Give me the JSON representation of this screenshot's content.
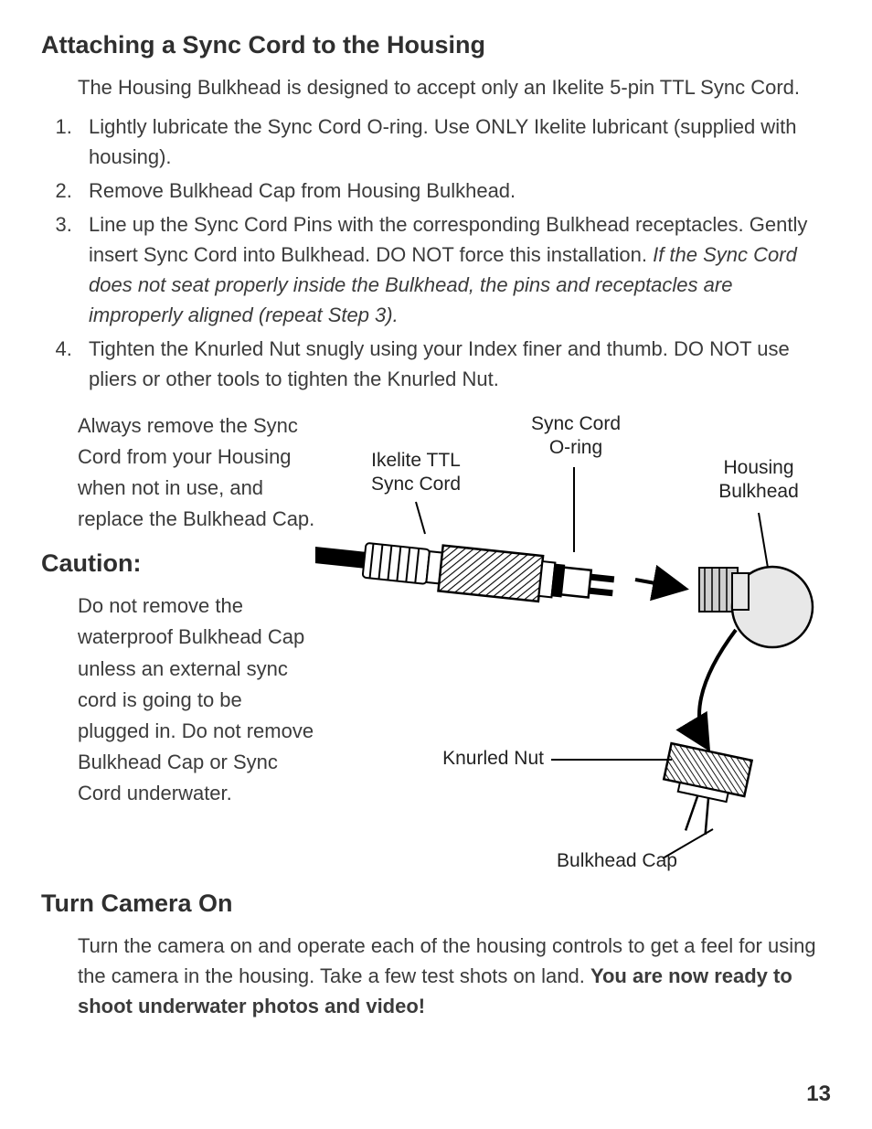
{
  "page_number": "13",
  "colors": {
    "text": "#3b3b3b",
    "heading": "#2f2f2f",
    "label": "#232323",
    "line": "#000000",
    "fill_light": "#e8e8e8",
    "fill_mid": "#cfcfcf",
    "fill_white": "#ffffff"
  },
  "heading_attach": "Attaching a Sync Cord to the Housing",
  "intro": "The Housing Bulkhead is designed to accept only an Ikelite 5-pin TTL Sync Cord.",
  "steps": {
    "s1": "Lightly lubricate the Sync Cord O-ring. Use ONLY Ikelite lubricant (supplied with housing).",
    "s2": "Remove Bulkhead Cap from Housing Bulkhead.",
    "s3a": "Line up the Sync Cord Pins with the corresponding Bulkhead receptacles. Gently insert Sync Cord into Bulkhead. DO NOT force this installation. ",
    "s3b": "If the Sync Cord does not seat properly inside the Bulkhead, the pins and receptacles are improperly aligned (repeat Step 3).",
    "s4": "Tighten the Knurled Nut snugly using your Index finer and thumb. DO NOT use pliers or other tools to tighten the Knurled Nut."
  },
  "advice": "Always remove the Sync Cord from your Housing when not in use, and replace the Bulkhead Cap.",
  "heading_caution": "Caution:",
  "caution": "Do not remove the waterproof Bulkhead Cap unless an external sync cord is going to be plugged in. Do not remove Bulkhead Cap or Sync Cord underwater.",
  "heading_turn": "Turn Camera On",
  "turn_p": "Turn the camera on and operate each of the housing controls to get a feel for using the camera in the housing. Take a few test shots on land. ",
  "turn_b": "You are now ready to shoot underwater photos and video!",
  "diagram": {
    "label_sync_cord": "Ikelite TTL\nSync Cord",
    "label_oring": "Sync Cord\nO-ring",
    "label_bulkhead": "Housing\nBulkhead",
    "label_knurled": "Knurled Nut",
    "label_cap": "Bulkhead Cap"
  }
}
